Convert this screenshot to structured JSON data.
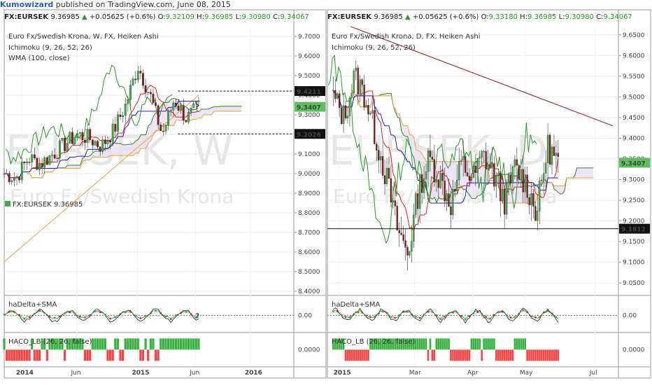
{
  "header": {
    "author": "Kumowizard",
    "published": " published on TradingView.com, June 08, 2015"
  },
  "colors": {
    "up": "#3cb043",
    "down": "#8b1a1a",
    "tenkan": "#e02020",
    "kijun": "#2020c0",
    "chikou": "#2a9a2a",
    "cloud": "#e8dff0",
    "spanA": "#2a8a2a",
    "spanB": "#f0a040",
    "wma": "#f0a040",
    "trend": "#a03030",
    "price_label": "#5cbf5c"
  },
  "chart_data": [
    {
      "type": "candlestick",
      "symbol": "FX:EURSEK",
      "quote": {
        "last": "9.36985",
        "change": "+0.05625 (+0.6%)",
        "open": "9.32109",
        "high": "9.36985",
        "low": "9.30980",
        "close": "9.34067"
      },
      "title": "Euro Fx/Swedish Krona, W, FX, Heiken Ashi",
      "indicators": [
        "Ichimoku (9, 26, 52, 26)",
        "WMA (100, close)"
      ],
      "watermark_symbol": "EURSEK, W",
      "watermark_name": "Euro Fx/Swedish Krona",
      "legend_symbol": "FX:EURSEK",
      "legend_value": "9.36985",
      "ylim": [
        8.4,
        9.75
      ],
      "yticks": [
        "9.7000",
        "9.6000",
        "9.5000",
        "9.4000",
        "9.3000",
        "9.2000",
        "9.1000",
        "9.0000",
        "8.9000",
        "8.8000",
        "8.7000",
        "8.6000",
        "8.5000",
        "8.4000"
      ],
      "xticks": [
        "2014",
        "Jun",
        "2015",
        "Jun",
        "2016"
      ],
      "price_labels": [
        {
          "value": 9.4211,
          "text": "9.4211"
        },
        {
          "value": 9.3407,
          "text": "9.3407"
        },
        {
          "value": 9.2026,
          "text": "9.2026"
        }
      ],
      "annotation": "?",
      "candles": [
        {
          "x": "2014-01",
          "o": 8.95,
          "h": 9.02,
          "l": 8.92,
          "c": 9.0
        },
        {
          "x": "2014-02",
          "o": 9.0,
          "h": 9.05,
          "l": 8.96,
          "c": 8.98
        },
        {
          "x": "2014-03",
          "o": 8.98,
          "h": 9.1,
          "l": 8.95,
          "c": 9.08
        },
        {
          "x": "2014-04",
          "o": 9.08,
          "h": 9.15,
          "l": 9.02,
          "c": 9.05
        },
        {
          "x": "2014-05",
          "o": 9.05,
          "h": 9.12,
          "l": 9.0,
          "c": 9.1
        },
        {
          "x": "2014-06",
          "o": 9.1,
          "h": 9.2,
          "l": 9.05,
          "c": 9.15
        },
        {
          "x": "2014-07",
          "o": 9.15,
          "h": 9.25,
          "l": 9.12,
          "c": 9.2
        },
        {
          "x": "2014-08",
          "o": 9.2,
          "h": 9.3,
          "l": 9.15,
          "c": 9.18
        },
        {
          "x": "2014-09",
          "o": 9.18,
          "h": 9.22,
          "l": 9.1,
          "c": 9.14
        },
        {
          "x": "2014-10",
          "o": 9.14,
          "h": 9.25,
          "l": 9.1,
          "c": 9.22
        },
        {
          "x": "2014-11",
          "o": 9.22,
          "h": 9.4,
          "l": 9.2,
          "c": 9.35
        },
        {
          "x": "2014-12",
          "o": 9.35,
          "h": 9.65,
          "l": 9.3,
          "c": 9.55
        },
        {
          "x": "2015-01",
          "o": 9.55,
          "h": 9.7,
          "l": 9.35,
          "c": 9.4
        },
        {
          "x": "2015-02",
          "o": 9.4,
          "h": 9.5,
          "l": 9.1,
          "c": 9.2
        },
        {
          "x": "2015-03",
          "o": 9.2,
          "h": 9.45,
          "l": 9.15,
          "c": 9.38
        },
        {
          "x": "2015-04",
          "o": 9.38,
          "h": 9.42,
          "l": 9.22,
          "c": 9.28
        },
        {
          "x": "2015-05",
          "o": 9.28,
          "h": 9.4,
          "l": 9.22,
          "c": 9.34
        }
      ],
      "subpanels": [
        {
          "name": "haDelta+SMA",
          "yticks": [
            "0.00"
          ],
          "annotation": "?"
        },
        {
          "name": "HACO_LB (26, 26, false)",
          "yticks": [
            "0.0000"
          ]
        }
      ]
    },
    {
      "type": "candlestick",
      "symbol": "FX:EURSEK",
      "quote": {
        "last": "9.36985",
        "change": "+0.05625 (+0.6%)",
        "open": "9.33180",
        "high": "9.36985",
        "low": "9.30980",
        "close": "9.34067"
      },
      "title": "Euro Fx/Swedish Krona, D, FX, Heiken Ashi",
      "indicators": [
        "Ichimoku (9, 26, 52, 26)"
      ],
      "watermark_symbol": "EURSEK, D",
      "watermark_name": "Euro Fx/Swedish Krona",
      "ylim": [
        9.03,
        9.67
      ],
      "yticks": [
        "9.6500",
        "9.6000",
        "9.5500",
        "9.5000",
        "9.4500",
        "9.4000",
        "9.3500",
        "9.3000",
        "9.2500",
        "9.2000",
        "9.1500",
        "9.1000",
        "9.0500"
      ],
      "xticks": [
        "2015",
        "Mar",
        "Apr",
        "May",
        "Jul"
      ],
      "price_labels": [
        {
          "value": 9.3407,
          "text": "9.3407"
        },
        {
          "value": 9.1812,
          "text": "9.1812"
        }
      ],
      "candles": [
        {
          "x": "2015-01-05",
          "o": 9.4,
          "h": 9.55,
          "l": 9.35,
          "c": 9.5
        },
        {
          "x": "2015-01-12",
          "o": 9.5,
          "h": 9.6,
          "l": 9.4,
          "c": 9.45
        },
        {
          "x": "2015-01-19",
          "o": 9.45,
          "h": 9.62,
          "l": 9.4,
          "c": 9.55
        },
        {
          "x": "2015-01-26",
          "o": 9.55,
          "h": 9.65,
          "l": 9.45,
          "c": 9.5
        },
        {
          "x": "2015-02-02",
          "o": 9.5,
          "h": 9.55,
          "l": 9.35,
          "c": 9.4
        },
        {
          "x": "2015-02-09",
          "o": 9.4,
          "h": 9.45,
          "l": 9.25,
          "c": 9.3
        },
        {
          "x": "2015-02-16",
          "o": 9.3,
          "h": 9.32,
          "l": 9.15,
          "c": 9.18
        },
        {
          "x": "2015-02-23",
          "o": 9.18,
          "h": 9.2,
          "l": 9.06,
          "c": 9.12
        },
        {
          "x": "2015-03-02",
          "o": 9.12,
          "h": 9.3,
          "l": 9.1,
          "c": 9.28
        },
        {
          "x": "2015-03-09",
          "o": 9.28,
          "h": 9.38,
          "l": 9.22,
          "c": 9.35
        },
        {
          "x": "2015-03-16",
          "o": 9.35,
          "h": 9.4,
          "l": 9.25,
          "c": 9.3
        },
        {
          "x": "2015-03-23",
          "o": 9.3,
          "h": 9.36,
          "l": 9.2,
          "c": 9.24
        },
        {
          "x": "2015-03-30",
          "o": 9.24,
          "h": 9.38,
          "l": 9.22,
          "c": 9.34
        },
        {
          "x": "2015-04-06",
          "o": 9.34,
          "h": 9.4,
          "l": 9.28,
          "c": 9.3
        },
        {
          "x": "2015-04-13",
          "o": 9.3,
          "h": 9.38,
          "l": 9.24,
          "c": 9.36
        },
        {
          "x": "2015-04-20",
          "o": 9.36,
          "h": 9.42,
          "l": 9.28,
          "c": 9.31
        },
        {
          "x": "2015-04-27",
          "o": 9.31,
          "h": 9.36,
          "l": 9.22,
          "c": 9.25
        },
        {
          "x": "2015-05-04",
          "o": 9.25,
          "h": 9.35,
          "l": 9.2,
          "c": 9.33
        },
        {
          "x": "2015-05-11",
          "o": 9.33,
          "h": 9.41,
          "l": 9.26,
          "c": 9.29
        },
        {
          "x": "2015-05-18",
          "o": 9.29,
          "h": 9.31,
          "l": 9.18,
          "c": 9.22
        },
        {
          "x": "2015-05-25",
          "o": 9.22,
          "h": 9.42,
          "l": 9.2,
          "c": 9.38
        },
        {
          "x": "2015-06-01",
          "o": 9.38,
          "h": 9.4,
          "l": 9.3,
          "c": 9.34
        }
      ],
      "trendline": [
        {
          "x": "2015-01-05",
          "y": 9.67
        },
        {
          "x": "2015-06-29",
          "y": 9.43
        }
      ],
      "subpanels": [
        {
          "name": "haDelta+SMA",
          "yticks": [
            "0.00"
          ]
        },
        {
          "name": "HACO_LB (26, 26, false)",
          "yticks": [
            "0.0000"
          ]
        }
      ]
    }
  ]
}
